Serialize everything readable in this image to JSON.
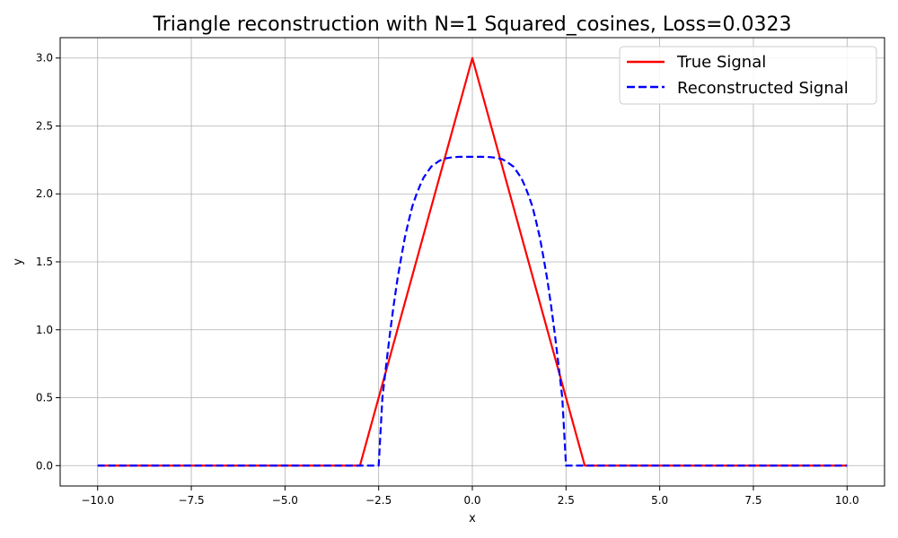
{
  "chart_data": {
    "type": "line",
    "title": "Triangle reconstruction with N=1 Squared_cosines, Loss=0.0323",
    "xlabel": "x",
    "ylabel": "y",
    "xlim": [
      -11,
      11
    ],
    "ylim": [
      -0.15,
      3.15
    ],
    "xticks": [
      -10,
      -7.5,
      -5,
      -2.5,
      0,
      2.5,
      5,
      7.5,
      10
    ],
    "xtick_labels": [
      "−10.0",
      "−7.5",
      "−5.0",
      "−2.5",
      "0.0",
      "2.5",
      "5.0",
      "7.5",
      "10.0"
    ],
    "yticks": [
      0,
      0.5,
      1,
      1.5,
      2,
      2.5,
      3
    ],
    "ytick_labels": [
      "0.0",
      "0.5",
      "1.0",
      "1.5",
      "2.0",
      "2.5",
      "3.0"
    ],
    "grid": true,
    "legend_position": "top-right",
    "series": [
      {
        "name": "True Signal",
        "color": "#ff0000",
        "style": "solid",
        "x": [
          -10,
          -3,
          0,
          3,
          10
        ],
        "y": [
          0,
          0,
          3,
          0,
          0
        ]
      },
      {
        "name": "Reconstructed Signal",
        "color": "#0000ff",
        "style": "dashed",
        "x": [
          -10,
          -2.5,
          -2.4,
          -2.3,
          -2.2,
          -2.1,
          -2.0,
          -1.9,
          -1.8,
          -1.7,
          -1.6,
          -1.5,
          -1.4,
          -1.3,
          -1.2,
          -1.1,
          -1.0,
          -0.9,
          -0.8,
          -0.7,
          -0.6,
          -0.5,
          -0.4,
          -0.3,
          -0.2,
          -0.1,
          0,
          0.1,
          0.2,
          0.3,
          0.4,
          0.5,
          0.6,
          0.7,
          0.8,
          0.9,
          1.0,
          1.1,
          1.2,
          1.3,
          1.4,
          1.5,
          1.6,
          1.7,
          1.8,
          1.9,
          2.0,
          2.1,
          2.2,
          2.3,
          2.4,
          2.5,
          10
        ],
        "y": [
          0,
          0,
          0.5,
          0.74,
          0.97,
          1.18,
          1.37,
          1.53,
          1.68,
          1.8,
          1.91,
          1.99,
          2.06,
          2.12,
          2.16,
          2.2,
          2.22,
          2.24,
          2.255,
          2.262,
          2.267,
          2.27,
          2.272,
          2.273,
          2.273,
          2.273,
          2.273,
          2.273,
          2.273,
          2.273,
          2.272,
          2.27,
          2.267,
          2.262,
          2.255,
          2.24,
          2.22,
          2.2,
          2.16,
          2.12,
          2.06,
          1.99,
          1.91,
          1.8,
          1.68,
          1.53,
          1.37,
          1.18,
          0.97,
          0.74,
          0.5,
          0,
          0
        ]
      }
    ]
  }
}
